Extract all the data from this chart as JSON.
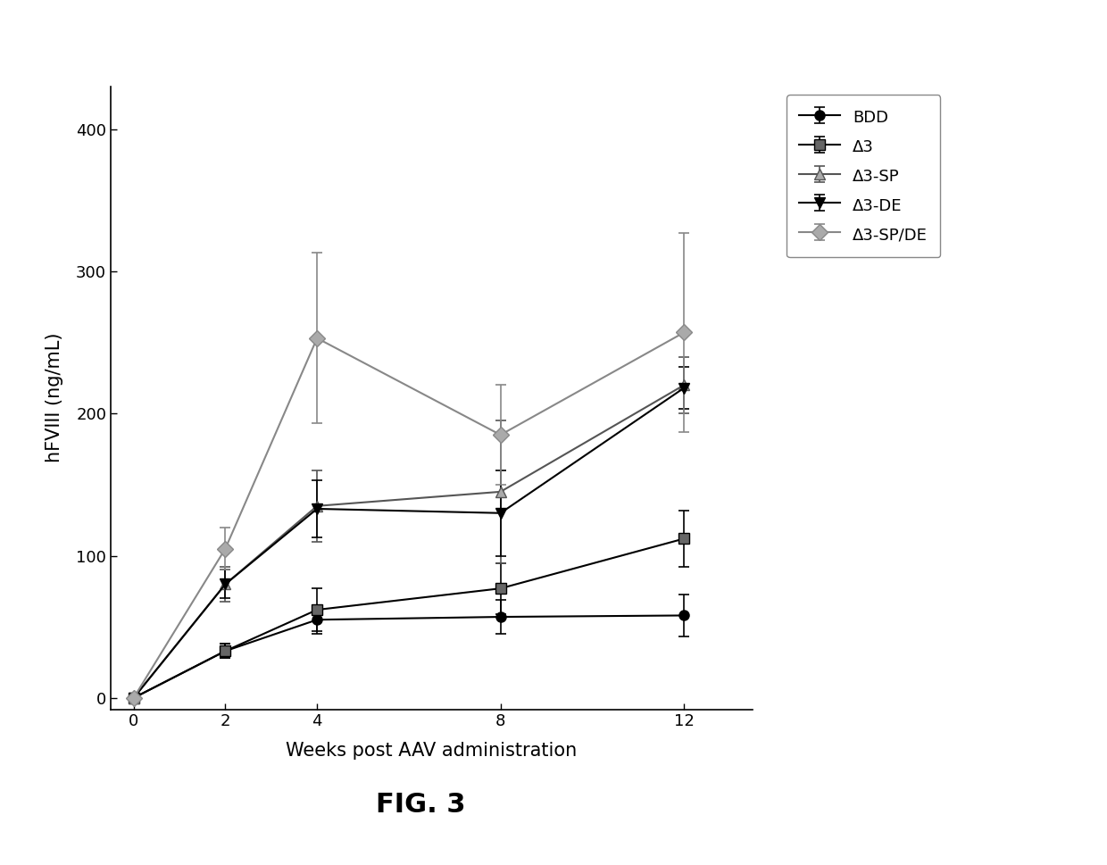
{
  "title": "FIG. 3",
  "xlabel": "Weeks post AAV administration",
  "ylabel": "hFVIII (ng/mL)",
  "xlim": [
    -0.5,
    13.5
  ],
  "ylim": [
    -8,
    430
  ],
  "xticks": [
    0,
    2,
    4,
    8,
    12
  ],
  "yticks": [
    0,
    100,
    200,
    300,
    400
  ],
  "series": [
    {
      "label": "BDD",
      "x": [
        0,
        2,
        4,
        8,
        12
      ],
      "y": [
        0,
        33,
        55,
        57,
        58
      ],
      "yerr": [
        0,
        5,
        10,
        12,
        15
      ],
      "color": "#000000",
      "marker": "o",
      "markersize": 8,
      "mfc": "#000000",
      "mec": "#000000",
      "ls": "-",
      "lw": 1.5
    },
    {
      "label": "Δ3",
      "x": [
        0,
        2,
        4,
        8,
        12
      ],
      "y": [
        0,
        33,
        62,
        77,
        112
      ],
      "yerr": [
        0,
        5,
        15,
        18,
        20
      ],
      "color": "#000000",
      "marker": "s",
      "markersize": 8,
      "mfc": "#666666",
      "mec": "#000000",
      "ls": "-",
      "lw": 1.5
    },
    {
      "label": "Δ3-SP",
      "x": [
        0,
        2,
        4,
        8,
        12
      ],
      "y": [
        0,
        80,
        135,
        145,
        220
      ],
      "yerr": [
        0,
        12,
        25,
        50,
        20
      ],
      "color": "#555555",
      "marker": "^",
      "markersize": 9,
      "mfc": "#aaaaaa",
      "mec": "#555555",
      "ls": "-",
      "lw": 1.5
    },
    {
      "label": "Δ3-DE",
      "x": [
        0,
        2,
        4,
        8,
        12
      ],
      "y": [
        0,
        80,
        133,
        130,
        218
      ],
      "yerr": [
        0,
        10,
        20,
        30,
        15
      ],
      "color": "#000000",
      "marker": "v",
      "markersize": 9,
      "mfc": "#000000",
      "mec": "#000000",
      "ls": "-",
      "lw": 1.5
    },
    {
      "label": "Δ3-SP/DE",
      "x": [
        0,
        2,
        4,
        8,
        12
      ],
      "y": [
        0,
        105,
        253,
        185,
        257
      ],
      "yerr": [
        0,
        15,
        60,
        35,
        70
      ],
      "color": "#888888",
      "marker": "D",
      "markersize": 9,
      "mfc": "#aaaaaa",
      "mec": "#888888",
      "ls": "-",
      "lw": 1.5
    }
  ],
  "background_color": "#ffffff",
  "figsize": [
    12.4,
    9.69
  ],
  "dpi": 100
}
